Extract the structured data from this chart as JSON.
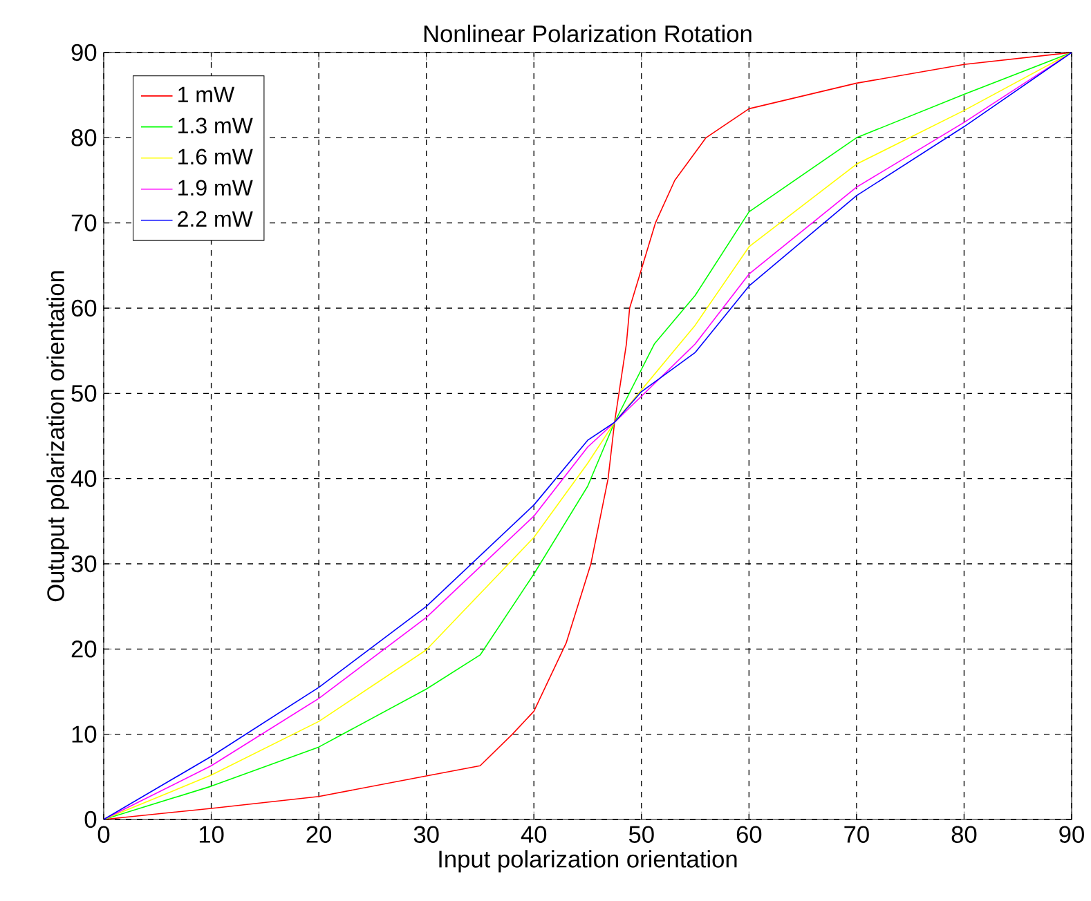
{
  "chart_data": {
    "type": "line",
    "title": "Nonlinear Polarization Rotation",
    "xlabel": "Input polarization orientation",
    "ylabel": "Outuput polarization orientation",
    "xlim": [
      0,
      90
    ],
    "ylim": [
      0,
      90
    ],
    "xticks": [
      0,
      10,
      20,
      30,
      40,
      50,
      60,
      70,
      80,
      90
    ],
    "yticks": [
      0,
      10,
      20,
      30,
      40,
      50,
      60,
      70,
      80,
      90
    ],
    "grid": true,
    "legend": "top left",
    "series": [
      {
        "name": "1 mW",
        "color": "#ff0000",
        "x": [
          0,
          10,
          20,
          30,
          35,
          38,
          40,
          43,
          45.3,
          46.9,
          47.5,
          48.6,
          48.9,
          51.3,
          53.1,
          56,
          60,
          70,
          80,
          90
        ],
        "values": [
          0,
          1.3,
          2.7,
          5.1,
          6.3,
          10,
          12.7,
          20.7,
          30,
          40,
          46.6,
          55.8,
          60,
          70,
          75,
          80,
          83.4,
          86.4,
          88.6,
          90
        ]
      },
      {
        "name": "1.3 mW",
        "color": "#00ff00",
        "x": [
          0,
          10,
          20,
          30,
          35,
          40,
          45,
          47.5,
          51.2,
          55,
          60,
          70,
          80,
          90
        ],
        "values": [
          0,
          3.9,
          8.5,
          15.3,
          19.3,
          28.8,
          39.1,
          46.6,
          55.8,
          61.5,
          71.3,
          80,
          85.1,
          90
        ]
      },
      {
        "name": "1.6 mW",
        "color": "#ffff00",
        "x": [
          0,
          10,
          20,
          30,
          40,
          45,
          47.5,
          50,
          55,
          60,
          70,
          80,
          90
        ],
        "values": [
          0,
          5.2,
          11.5,
          19.9,
          33.1,
          41.8,
          46.6,
          50.4,
          58,
          67.2,
          76.9,
          83.2,
          90
        ]
      },
      {
        "name": "1.9 mW",
        "color": "#ff00ff",
        "x": [
          0,
          10,
          20,
          30,
          40,
          45,
          47.5,
          55,
          60,
          70,
          80,
          90
        ],
        "values": [
          0,
          6.3,
          14.2,
          23.7,
          35.6,
          43.7,
          46.6,
          55.8,
          64,
          74.2,
          81.8,
          90
        ]
      },
      {
        "name": "2.2 mW",
        "color": "#0000ff",
        "x": [
          0,
          10,
          20,
          30,
          40,
          45,
          47.5,
          50,
          55,
          60,
          70,
          80,
          90
        ],
        "values": [
          0,
          7.4,
          15.5,
          25,
          36.9,
          44.5,
          46.6,
          50.2,
          54.8,
          62.6,
          73.2,
          81.3,
          90
        ]
      }
    ]
  }
}
